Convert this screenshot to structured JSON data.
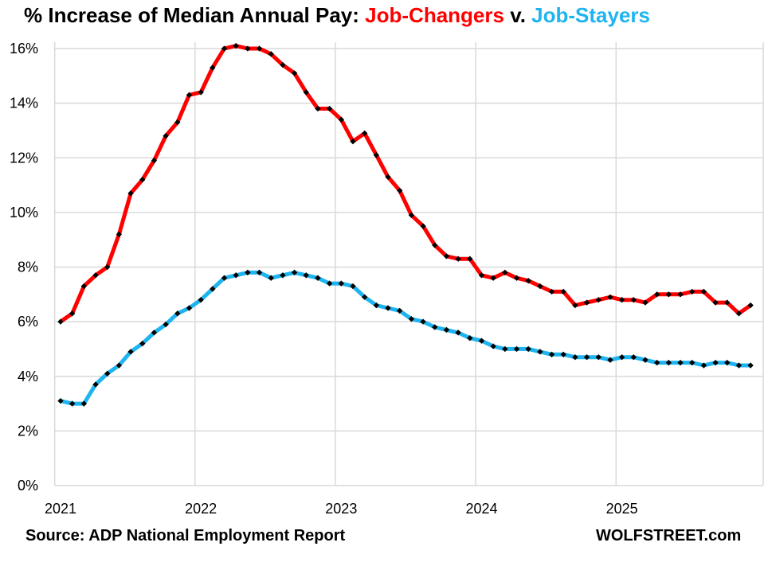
{
  "header": {
    "title_prefix": "% Increase of Median Annual  Pay: ",
    "series_a_label": "Job-Changers",
    "connector": " v. ",
    "series_b_label": "Job-Stayers"
  },
  "footer": {
    "source": "Source: ADP National Employment Report",
    "brand": "WOLFSTREET.com"
  },
  "colors": {
    "job_changers": "#ff0000",
    "job_stayers": "#1eb4f0",
    "marker": "#000000",
    "grid": "#d9d9d9"
  },
  "chart_data": {
    "type": "line",
    "title": "% Increase of Median Annual  Pay: Job-Changers v. Job-Stayers",
    "xlabel": "",
    "ylabel": "",
    "ylim": [
      0,
      16
    ],
    "yticks": [
      "0%",
      "2%",
      "4%",
      "6%",
      "8%",
      "10%",
      "12%",
      "14%",
      "16%"
    ],
    "xticks": [
      "2021",
      "2022",
      "2023",
      "2024",
      "2025"
    ],
    "grid": true,
    "x_start": "2021-01",
    "x_frequency": "monthly",
    "series": [
      {
        "name": "Job-Changers",
        "color": "#ff0000",
        "values": [
          6.0,
          6.3,
          7.3,
          7.7,
          8.0,
          9.2,
          10.7,
          11.2,
          11.9,
          12.8,
          13.3,
          14.3,
          14.4,
          15.3,
          16.0,
          16.1,
          16.0,
          16.0,
          15.8,
          15.4,
          15.1,
          14.4,
          13.8,
          13.8,
          13.4,
          12.6,
          12.9,
          12.1,
          11.3,
          10.8,
          9.9,
          9.5,
          8.8,
          8.4,
          8.3,
          8.3,
          7.7,
          7.6,
          7.8,
          7.6,
          7.5,
          7.3,
          7.1,
          7.1,
          6.6,
          6.7,
          6.8,
          6.9,
          6.8,
          6.8,
          6.7,
          7.0,
          7.0,
          7.0,
          7.1,
          7.1,
          6.7,
          6.7,
          6.3,
          6.6
        ]
      },
      {
        "name": "Job-Stayers",
        "color": "#1eb4f0",
        "values": [
          3.1,
          3.0,
          3.0,
          3.7,
          4.1,
          4.4,
          4.9,
          5.2,
          5.6,
          5.9,
          6.3,
          6.5,
          6.8,
          7.2,
          7.6,
          7.7,
          7.8,
          7.8,
          7.6,
          7.7,
          7.8,
          7.7,
          7.6,
          7.4,
          7.4,
          7.3,
          6.9,
          6.6,
          6.5,
          6.4,
          6.1,
          6.0,
          5.8,
          5.7,
          5.6,
          5.4,
          5.3,
          5.1,
          5.0,
          5.0,
          5.0,
          4.9,
          4.8,
          4.8,
          4.7,
          4.7,
          4.7,
          4.6,
          4.7,
          4.7,
          4.6,
          4.5,
          4.5,
          4.5,
          4.5,
          4.4,
          4.5,
          4.5,
          4.4,
          4.4
        ]
      }
    ]
  }
}
